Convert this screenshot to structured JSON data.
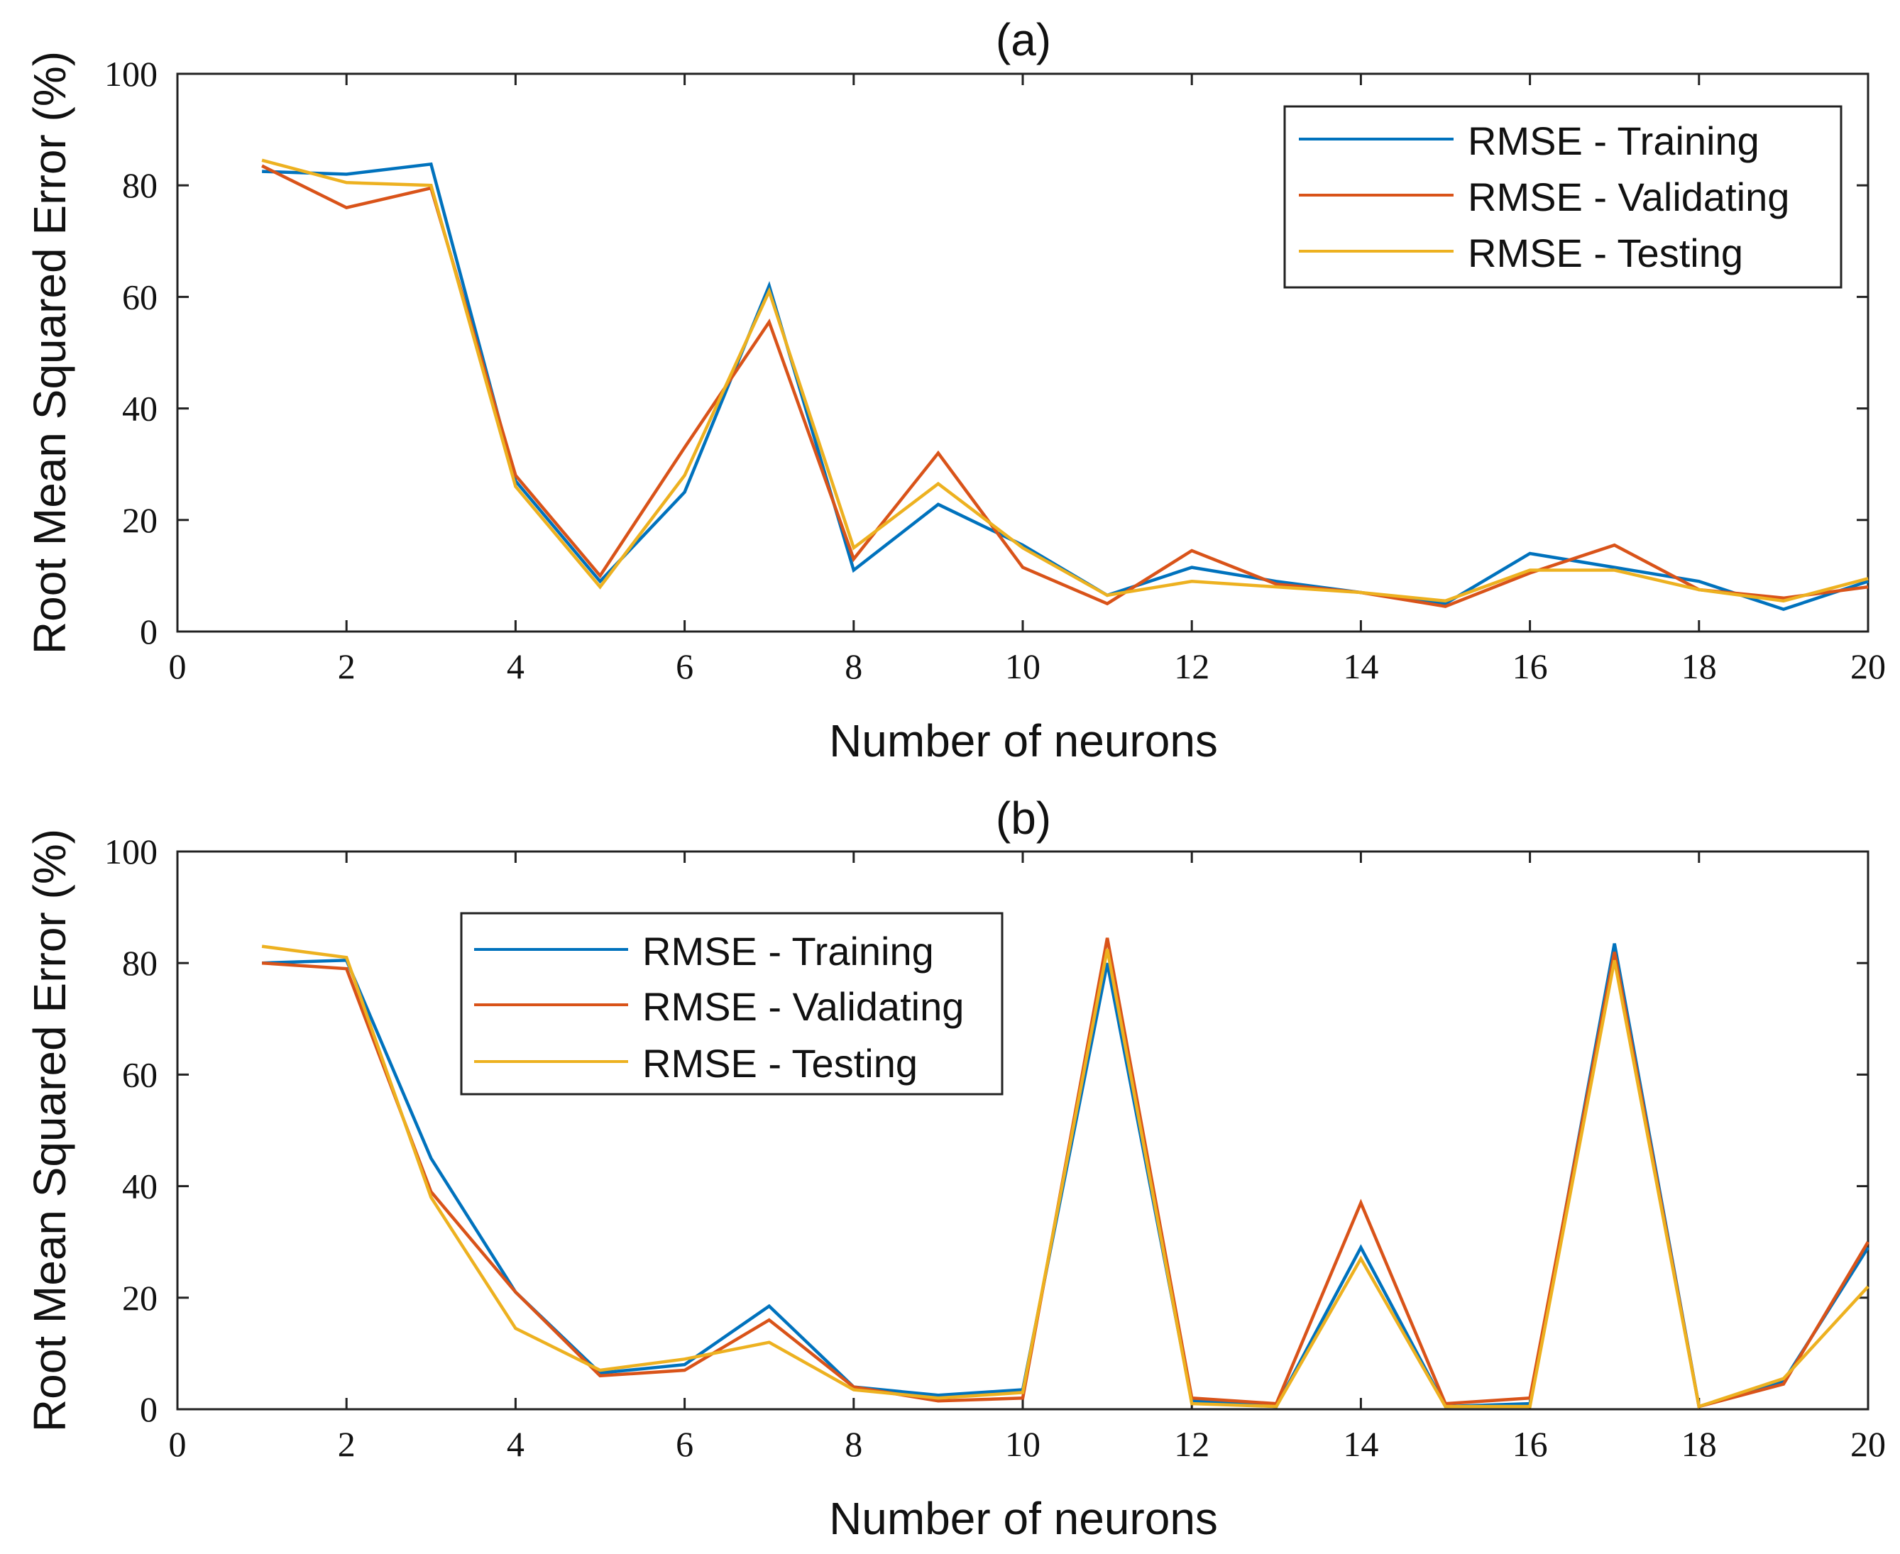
{
  "chart_data": [
    {
      "type": "line",
      "title": "(a)",
      "xlabel": "Number of neurons",
      "ylabel": "Root Mean Squared Error (%)",
      "xlim": [
        0,
        20
      ],
      "ylim": [
        0,
        100
      ],
      "xticks": [
        0,
        2,
        4,
        6,
        8,
        10,
        12,
        14,
        16,
        18,
        20
      ],
      "yticks": [
        0,
        20,
        40,
        60,
        80,
        100
      ],
      "grid": false,
      "legend_position": "top-right",
      "x": [
        1,
        2,
        3,
        4,
        5,
        6,
        7,
        8,
        9,
        10,
        11,
        12,
        13,
        14,
        15,
        16,
        17,
        18,
        19,
        20
      ],
      "series": [
        {
          "name": "RMSE - Training",
          "color": "#0072BD",
          "values": [
            82.5,
            82,
            83.8,
            27,
            9,
            25,
            62,
            11,
            22.8,
            15.5,
            6.5,
            11.5,
            9,
            7,
            5,
            14,
            11.5,
            9,
            4,
            9
          ]
        },
        {
          "name": "RMSE - Validating",
          "color": "#D95319",
          "values": [
            83.5,
            76,
            79.5,
            28,
            10,
            33,
            55.5,
            13,
            32,
            11.5,
            5,
            14.5,
            8.5,
            7,
            4.5,
            10.5,
            15.5,
            7.5,
            6,
            8
          ]
        },
        {
          "name": "RMSE - Testing",
          "color": "#EDB120",
          "values": [
            84.5,
            80.5,
            80,
            26,
            8,
            28,
            61,
            15,
            26.5,
            15,
            6.5,
            9,
            8,
            7,
            5.5,
            11,
            11,
            7.5,
            5.5,
            9.5
          ]
        }
      ]
    },
    {
      "type": "line",
      "title": "(b)",
      "xlabel": "Number of neurons",
      "ylabel": "Root Mean Squared Error (%)",
      "xlim": [
        0,
        20
      ],
      "ylim": [
        0,
        100
      ],
      "xticks": [
        0,
        2,
        4,
        6,
        8,
        10,
        12,
        14,
        16,
        18,
        20
      ],
      "yticks": [
        0,
        20,
        40,
        60,
        80,
        100
      ],
      "grid": false,
      "legend_position": "top-center-left",
      "x": [
        1,
        2,
        3,
        4,
        5,
        6,
        7,
        8,
        9,
        10,
        11,
        12,
        13,
        14,
        15,
        16,
        17,
        18,
        19,
        20
      ],
      "series": [
        {
          "name": "RMSE - Training",
          "color": "#0072BD",
          "values": [
            80,
            80.5,
            45,
            21,
            6.5,
            8,
            18.5,
            4,
            2.5,
            3.5,
            80,
            1.5,
            0.5,
            29,
            0.5,
            1,
            83.5,
            0.5,
            5,
            29
          ]
        },
        {
          "name": "RMSE - Validating",
          "color": "#D95319",
          "values": [
            80,
            79,
            39,
            21,
            6,
            7,
            16,
            4,
            1.5,
            2,
            84.5,
            2,
            1,
            37,
            1,
            2,
            82,
            0.5,
            4.5,
            30
          ]
        },
        {
          "name": "RMSE - Testing",
          "color": "#EDB120",
          "values": [
            83,
            81,
            38,
            14.5,
            7,
            9,
            12,
            3.5,
            2,
            3,
            82.5,
            1,
            0.5,
            27,
            0.5,
            0.5,
            80.5,
            0.5,
            5.5,
            22
          ]
        }
      ]
    }
  ]
}
